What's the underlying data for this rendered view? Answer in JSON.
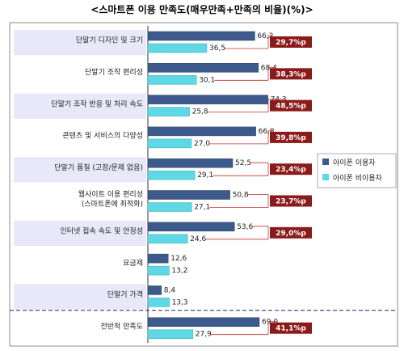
{
  "chart_data": {
    "type": "bar",
    "title": "<스마트폰 이용 만족도(매우만족+만족의 비율)(%)>",
    "categories": [
      "단말기 디자인 및 크기",
      "단말기 조작 편리성",
      "단말기 조작 반응 및 처리 속도",
      "콘텐츠 및 서비스의 다양성",
      "단말기 품질 (고장/문제 없음)",
      "웹사이트 이용 편리성\n(스마트폰에 최적화)",
      "인터넷 접속 속도 및 안정성",
      "요금제",
      "단말기 가격",
      "전반적 만족도"
    ],
    "series": [
      {
        "name": "아이폰 이용자",
        "values": [
          "66,2",
          "68,4",
          "74,3",
          "66,8",
          "52,5",
          "50,8",
          "53,6",
          "12,6",
          "8,4",
          "69,0"
        ],
        "color": "#3d5a8c"
      },
      {
        "name": "아이폰 비이용자",
        "values": [
          "36,5",
          "30,1",
          "25,8",
          "27,0",
          "29,1",
          "27,1",
          "24,6",
          "13,2",
          "13,3",
          "27,9"
        ],
        "color": "#5ed8e4"
      }
    ],
    "differences": [
      "29,7%p",
      "38,3%p",
      "48,5%p",
      "39,8%p",
      "23,4%p",
      "23,7%p",
      "29,0%p",
      "",
      "",
      "41,1%p"
    ],
    "diff_color": "#8b1a1a",
    "highlight_band_color": "#e8e8f8",
    "xlim": [
      0,
      100
    ],
    "legend_position": "right"
  }
}
